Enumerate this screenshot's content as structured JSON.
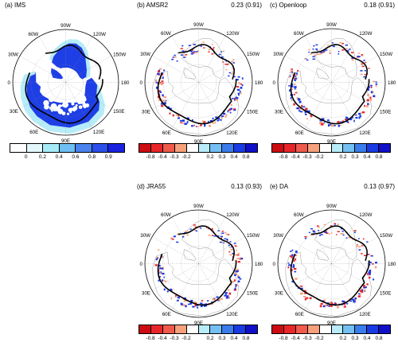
{
  "panels": [
    {
      "id": "a",
      "title": "(a) IMS",
      "score": "",
      "cbar": "ims"
    },
    {
      "id": "b",
      "title": "(b) AMSR2",
      "score": "0.23 (0.91)",
      "cbar": "diff"
    },
    {
      "id": "c",
      "title": "(c) Openloop",
      "score": "0.18 (0.91)",
      "cbar": "diff"
    },
    {
      "id": "d",
      "title": "(d) JRA55",
      "score": "0.13 (0.93)",
      "cbar": "diff"
    },
    {
      "id": "e",
      "title": "(e) DA",
      "score": "0.13 (0.97)",
      "cbar": "diff"
    }
  ],
  "map_labels": {
    "lon_90W": "90W",
    "lon_60W": "60W",
    "lon_120W": "120W",
    "lon_30W": "30W",
    "lon_150W": "150W",
    "lon_0": "0",
    "lon_180": "180",
    "lon_30E": "30E",
    "lon_150E": "150E",
    "lon_60E": "60E",
    "lon_120E": "120E",
    "lon_90E": "90E"
  },
  "colorbars": {
    "ims": {
      "colors": [
        "#ffffff",
        "#e4f8fc",
        "#a6ecf8",
        "#6ec0f4",
        "#4a82ee",
        "#2b4fe8",
        "#1a22e0"
      ],
      "ticks": [
        "0",
        "0.2",
        "0.4",
        "0.6",
        "0.8",
        "0.9"
      ]
    },
    "diff": {
      "colors": [
        "#cc0c12",
        "#e8262a",
        "#f05a4c",
        "#f7a07c",
        "#ffffff",
        "#b8ecf8",
        "#74c0f4",
        "#3a7cec",
        "#1a3ae4",
        "#1010c8"
      ],
      "ticks": [
        "-0.8",
        "-0.4",
        "-0.3",
        "-0.2",
        "0.2",
        "0.3",
        "0.4",
        "0.8"
      ]
    }
  },
  "styles": {
    "snow_blue": "#1f3fe6",
    "snow_light": "#b6ecf8",
    "edge_black": "#000000",
    "diff_red": "#e8262a",
    "diff_orange": "#f7a07c",
    "diff_blue": "#1a3ae4",
    "coast": "#9a9a9a"
  }
}
